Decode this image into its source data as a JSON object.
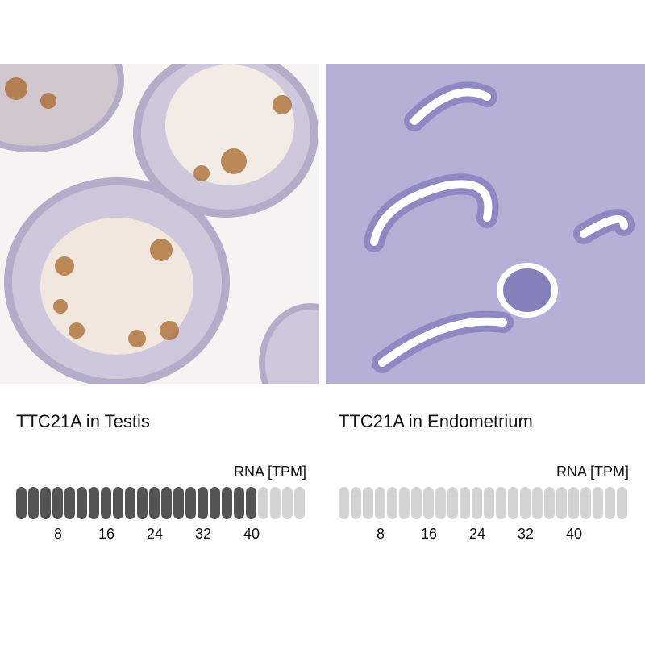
{
  "panels": [
    {
      "title": "TTC21A in Testis",
      "tissue": "Testis",
      "rna_label": "RNA [TPM]",
      "bar_count": 24,
      "filled_bars": 20,
      "ticks": [
        "8",
        "16",
        "24",
        "32",
        "40"
      ],
      "stain_colors": {
        "tissue": "#b8b3d0",
        "positive": "#a8672a"
      }
    },
    {
      "title": "TTC21A in Endometrium",
      "tissue": "Endometrium",
      "rna_label": "RNA [TPM]",
      "bar_count": 24,
      "filled_bars": 0,
      "ticks": [
        "8",
        "16",
        "24",
        "32",
        "40"
      ],
      "stain_colors": {
        "tissue": "#6e6aa8",
        "positive": "#a8672a"
      }
    }
  ],
  "colors": {
    "bar_filled": "#545454",
    "bar_empty": "#d3d3d3"
  }
}
